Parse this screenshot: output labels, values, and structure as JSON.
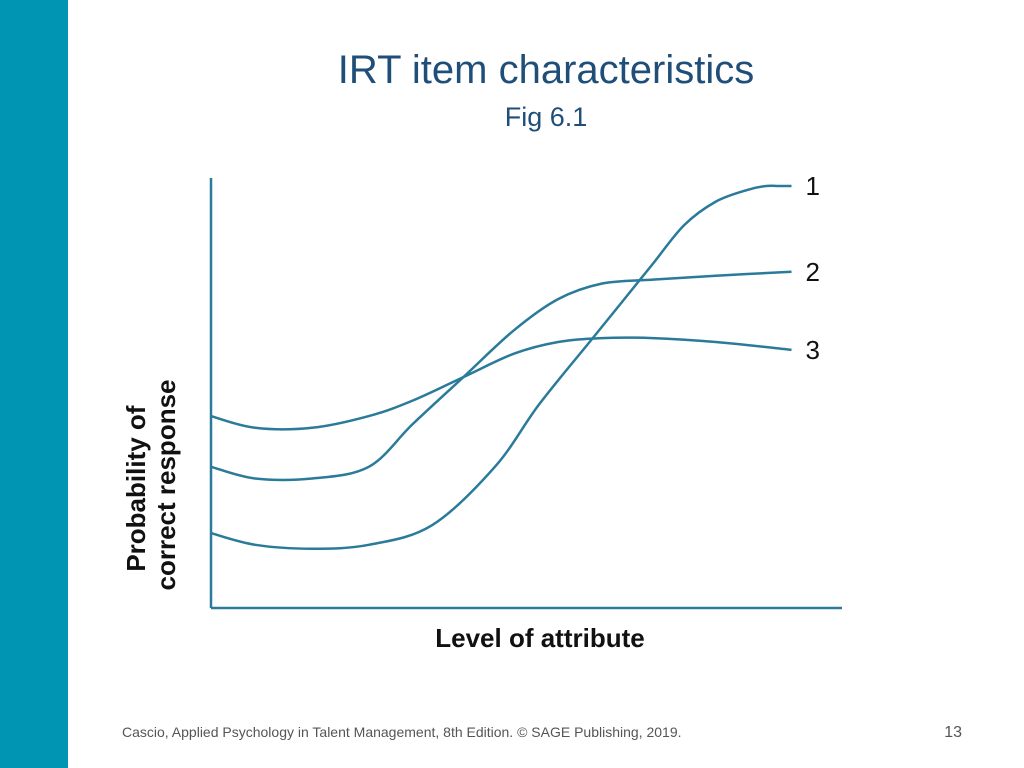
{
  "slide": {
    "title": "IRT item characteristics",
    "subtitle": "Fig 6.1",
    "footer": "Cascio, Applied Psychology in Talent Management, 8th Edition. © SAGE Publishing, 2019.",
    "page_number": "13",
    "accent_color": "#0096b3",
    "curve_color": "#2a7a9a"
  },
  "chart_data": {
    "type": "line",
    "title": "",
    "xlabel": "Level of attribute",
    "ylabel_lines": [
      "Probability of",
      "correct response"
    ],
    "xlim": [
      0,
      100
    ],
    "ylim": [
      0,
      100
    ],
    "grid": false,
    "series": [
      {
        "name": "1",
        "x": [
          0,
          7,
          16,
          25,
          35,
          45,
          52,
          60,
          65,
          70,
          75,
          80,
          85,
          88,
          90,
          92
        ],
        "y": [
          11,
          8,
          7,
          8,
          13,
          28,
          44,
          60,
          70,
          80,
          90,
          96,
          99,
          100,
          100,
          100
        ]
      },
      {
        "name": "2",
        "x": [
          0,
          7,
          16,
          25,
          32,
          40,
          48,
          55,
          62,
          70,
          80,
          92
        ],
        "y": [
          28,
          25,
          25,
          28,
          39,
          51,
          63,
          71,
          75,
          76,
          77,
          78
        ]
      },
      {
        "name": "3",
        "x": [
          0,
          7,
          16,
          25,
          32,
          40,
          48,
          55,
          62,
          70,
          80,
          92
        ],
        "y": [
          41,
          38,
          38,
          41,
          45,
          51,
          57,
          60,
          61,
          61,
          60,
          58
        ]
      }
    ]
  }
}
